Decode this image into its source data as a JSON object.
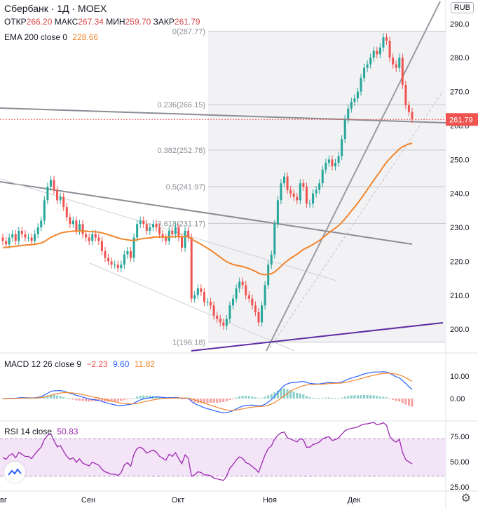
{
  "header": {
    "title": "Сбербанк · 1Д · MOEX",
    "open_label": "ОТКР",
    "open": "266.20",
    "high_label": "МАКС",
    "high": "267.34",
    "low_label": "МИН",
    "low": "259.70",
    "close_label": "ЗАКР",
    "close": "261.79",
    "ema_label": "EMA 200 close 0",
    "ema_value": "228.66",
    "currency": "RUB"
  },
  "colors": {
    "up": "#26a69a",
    "down": "#ef5350",
    "ema": "#f0852d",
    "macd": "#2962ff",
    "signal": "#f0852d",
    "rsi": "#9c27b0",
    "fib_bg": "#f2f2f5"
  },
  "chart_data": [
    {
      "type": "candlestick",
      "title": "Сбербанк · 1Д · MOEX",
      "ylim": [
        193,
        297
      ],
      "y_ticks": [
        200,
        210,
        220,
        230,
        240,
        250,
        260,
        270,
        280,
        290
      ],
      "last_price": "261.79",
      "x_ticks": [
        "вг",
        "Сен",
        "Окт",
        "Ноя",
        "Дек"
      ],
      "fib_levels": [
        {
          "label": "0(287.77)",
          "value": 287.77
        },
        {
          "label": "0.236(266.15)",
          "value": 266.15
        },
        {
          "label": "0.382(252.78)",
          "value": 252.78
        },
        {
          "label": "0.5(241.97)",
          "value": 241.97
        },
        {
          "label": "0.618(231.17)",
          "value": 231.17
        },
        {
          "label": "1(196.18)",
          "value": 196.18
        }
      ],
      "closes": [
        226,
        225,
        227,
        228,
        226,
        229,
        228,
        227,
        227,
        226,
        228,
        230,
        232,
        238,
        242,
        244,
        241,
        238,
        239,
        236,
        233,
        231,
        232,
        229,
        231,
        228,
        227,
        226,
        228,
        227,
        226,
        223,
        221,
        220,
        219,
        219,
        218,
        219,
        222,
        223,
        221,
        227,
        231,
        232,
        231,
        229,
        230,
        231,
        230,
        228,
        227,
        226,
        229,
        228,
        230,
        227,
        224,
        229,
        227,
        209,
        210,
        212,
        211,
        208,
        208,
        207,
        204,
        203,
        202,
        201,
        203,
        207,
        209,
        212,
        214,
        213,
        210,
        209,
        207,
        205,
        202,
        207,
        213,
        219,
        222,
        231,
        238,
        243,
        245,
        241,
        240,
        239,
        238,
        243,
        242,
        237,
        237,
        240,
        241,
        243,
        247,
        249,
        250,
        248,
        249,
        251,
        256,
        262,
        265,
        267,
        268,
        270,
        274,
        277,
        278,
        280,
        282,
        281,
        283,
        286,
        285,
        280,
        278,
        277,
        280,
        272,
        266,
        264,
        262
      ]
    },
    {
      "type": "bar",
      "title": "MACD 12 26 close 9",
      "values_text": [
        "−2.23",
        "9.60",
        "11.82"
      ],
      "y_ticks": [
        "10.00",
        "0.00"
      ]
    },
    {
      "type": "line",
      "title": "RSI 14 close",
      "value_text": "50.83",
      "y_ticks": [
        "75.00",
        "50.00",
        "25.00"
      ]
    }
  ]
}
